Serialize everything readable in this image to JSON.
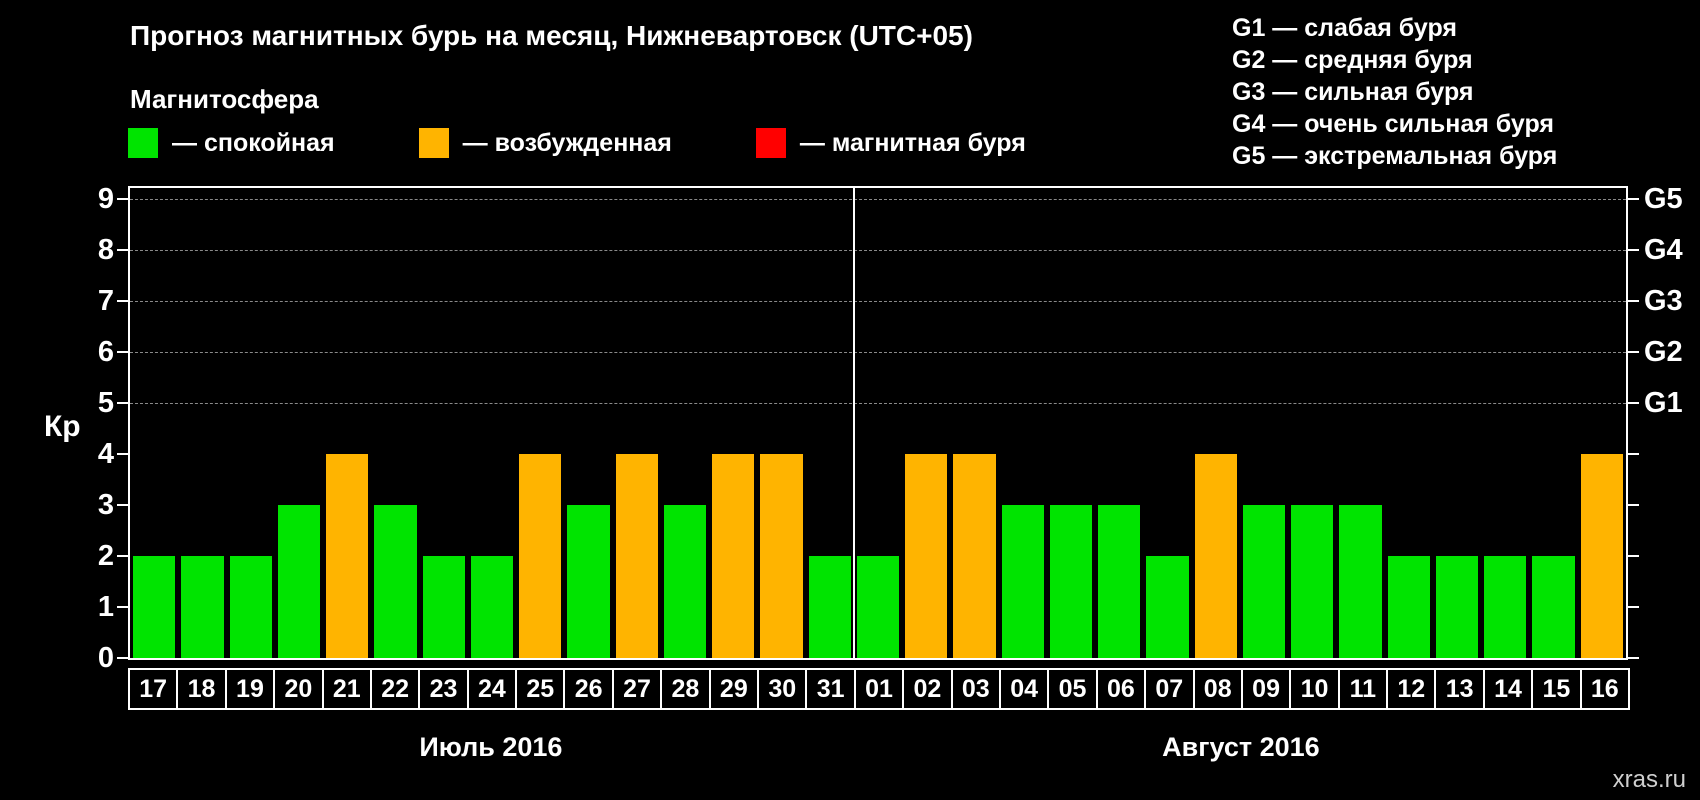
{
  "header": {
    "title": "Прогноз магнитных бурь на месяц, Нижневартовск (UTC+05)",
    "subtitle": "Магнитосфера"
  },
  "legend": {
    "items": [
      {
        "name": "quiet",
        "label": "— спокойная",
        "color": "#00e400"
      },
      {
        "name": "unsettled",
        "label": "— возбужденная",
        "color": "#ffb400"
      },
      {
        "name": "storm",
        "label": "— магнитная буря",
        "color": "#ff0000"
      }
    ]
  },
  "g_legend": {
    "items": [
      "G1 — слабая буря",
      "G2 — средняя буря",
      "G3 — сильная буря",
      "G4 — очень сильная буря",
      "G5 — экстремальная буря"
    ]
  },
  "chart_data": {
    "type": "bar",
    "title": "Прогноз магнитных бурь на месяц, Нижневартовск (UTC+05)",
    "ylabel": "Кр",
    "ylim": [
      0,
      9
    ],
    "yticks": [
      0,
      1,
      2,
      3,
      4,
      5,
      6,
      7,
      8,
      9
    ],
    "gridlines_at": [
      5,
      6,
      7,
      8,
      9
    ],
    "grid": "dashed horizontal at G-levels",
    "right_axis": {
      "labels": [
        "G1",
        "G2",
        "G3",
        "G4",
        "G5"
      ],
      "values": [
        5,
        6,
        7,
        8,
        9
      ]
    },
    "categories": [
      "17",
      "18",
      "19",
      "20",
      "21",
      "22",
      "23",
      "24",
      "25",
      "26",
      "27",
      "28",
      "29",
      "30",
      "31",
      "01",
      "02",
      "03",
      "04",
      "05",
      "06",
      "07",
      "08",
      "09",
      "10",
      "11",
      "12",
      "13",
      "14",
      "15",
      "16"
    ],
    "values": [
      2,
      2,
      2,
      3,
      4,
      3,
      2,
      2,
      4,
      3,
      4,
      3,
      4,
      4,
      2,
      2,
      4,
      4,
      3,
      3,
      3,
      2,
      4,
      3,
      3,
      3,
      2,
      2,
      2,
      2,
      4
    ],
    "month_groups": [
      {
        "label": "Июль 2016",
        "count": 15
      },
      {
        "label": "Август 2016",
        "count": 16
      }
    ],
    "color_thresholds": {
      "quiet_max": 3,
      "unsettled_max": 4
    }
  },
  "colors": {
    "background": "#000000",
    "text": "#ffffff",
    "grid": "#8a8a8a",
    "axis": "#ffffff",
    "quiet": "#00e400",
    "unsettled": "#ffb400",
    "storm": "#ff0000"
  },
  "watermark": "xras.ru"
}
